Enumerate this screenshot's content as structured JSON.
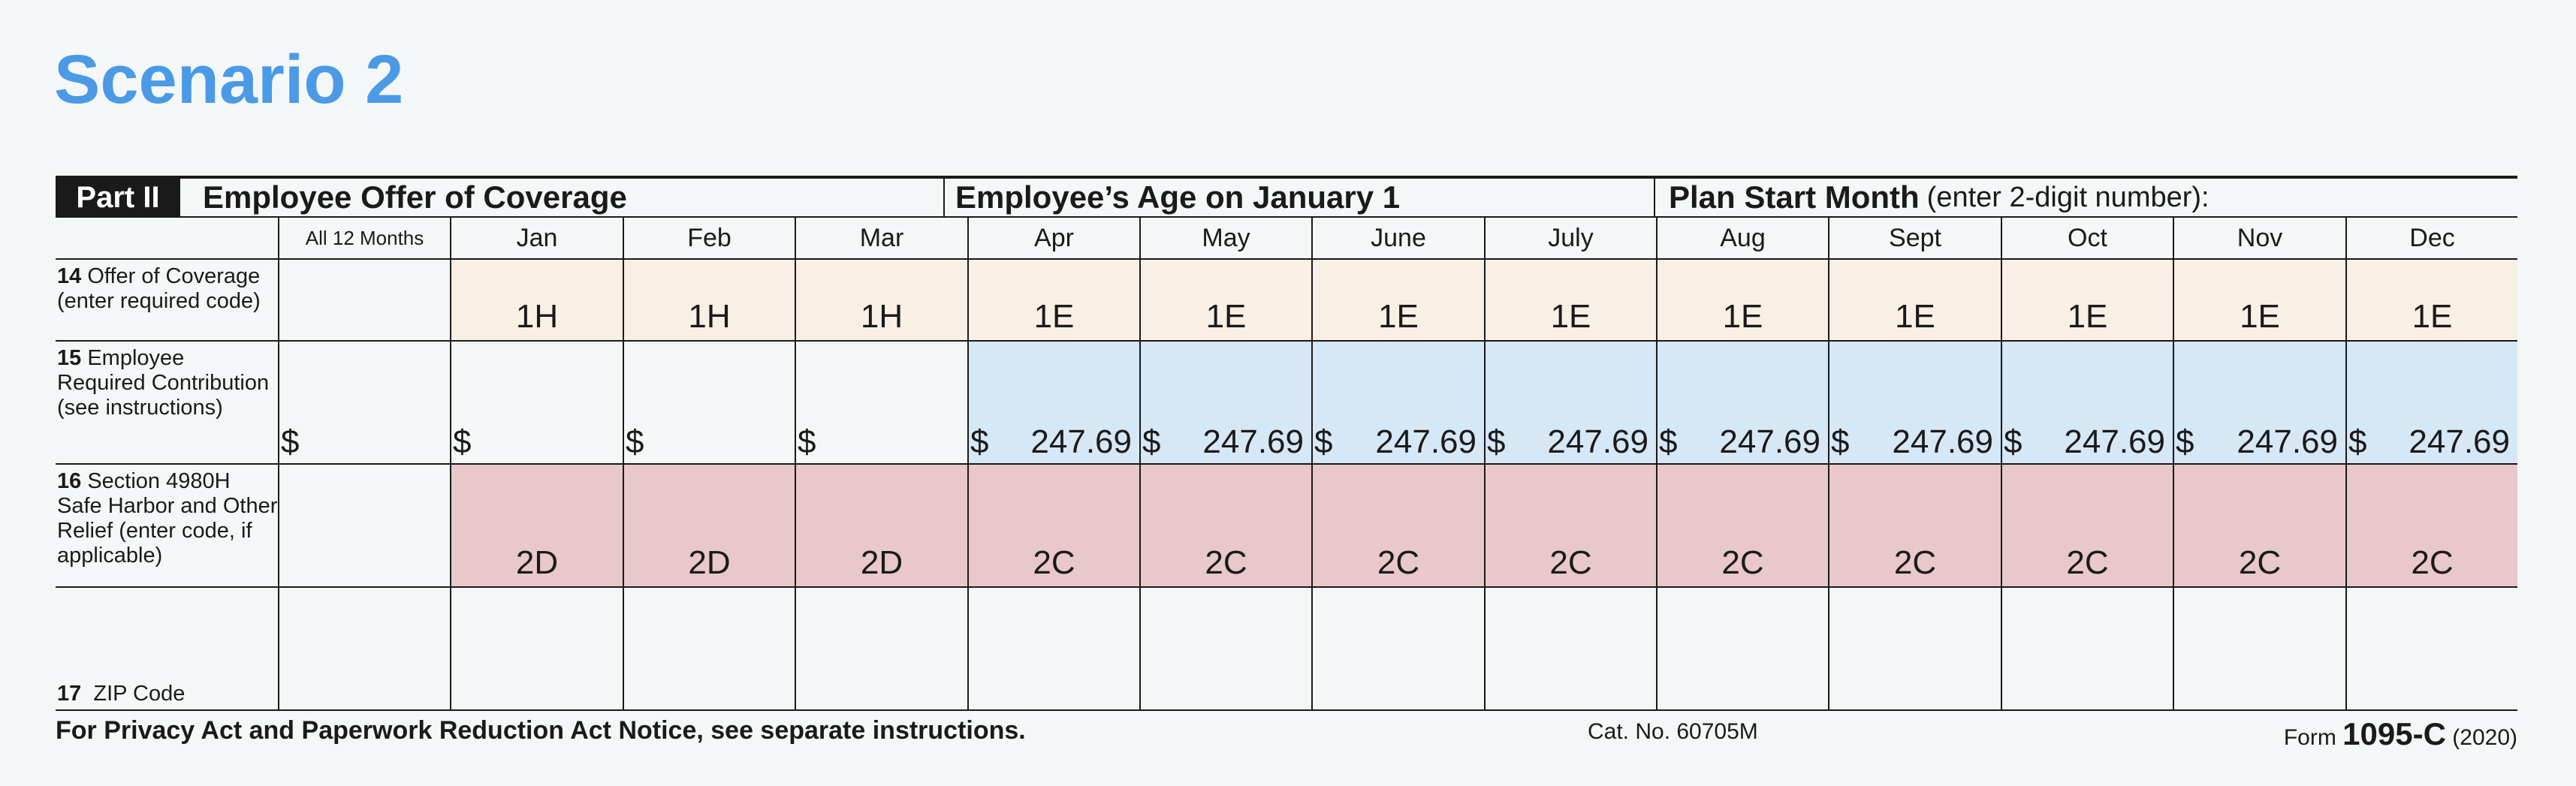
{
  "title": "Scenario 2",
  "part": {
    "badge": "Part II",
    "heading": "Employee Offer of Coverage",
    "age_heading": "Employee’s Age on January 1",
    "plan_start_bold": "Plan Start Month",
    "plan_start_note": "(enter 2-digit number):"
  },
  "columns": [
    "All 12 Months",
    "Jan",
    "Feb",
    "Mar",
    "Apr",
    "May",
    "June",
    "July",
    "Aug",
    "Sept",
    "Oct",
    "Nov",
    "Dec"
  ],
  "rows": {
    "line14": {
      "number": "14",
      "label": "Offer of Coverage (enter required code)",
      "color": "#f8efe5",
      "values": [
        "",
        "1H",
        "1H",
        "1H",
        "1E",
        "1E",
        "1E",
        "1E",
        "1E",
        "1E",
        "1E",
        "1E",
        "1E"
      ]
    },
    "line15": {
      "number": "15",
      "label": "Employee Required Contribution (see instructions)",
      "color_blank": "#f4f7f8",
      "color_filled": "#d6e7f6",
      "currency": "$",
      "values": [
        "",
        "",
        "",
        "",
        "247.69",
        "247.69",
        "247.69",
        "247.69",
        "247.69",
        "247.69",
        "247.69",
        "247.69",
        "247.69"
      ]
    },
    "line16": {
      "number": "16",
      "label": "Section 4980H Safe Harbor and Other Relief (enter code, if applicable)",
      "color": "#e8c8cb",
      "values": [
        "",
        "2D",
        "2D",
        "2D",
        "2C",
        "2C",
        "2C",
        "2C",
        "2C",
        "2C",
        "2C",
        "2C",
        "2C"
      ]
    },
    "line17": {
      "number": "17",
      "label": "ZIP Code"
    }
  },
  "footer": {
    "notice": "For Privacy Act and Paperwork Reduction Act Notice, see separate instructions.",
    "cat": "Cat. No. 60705M",
    "form_prefix": "Form",
    "form_number": "1095-C",
    "form_year": "(2020)"
  }
}
